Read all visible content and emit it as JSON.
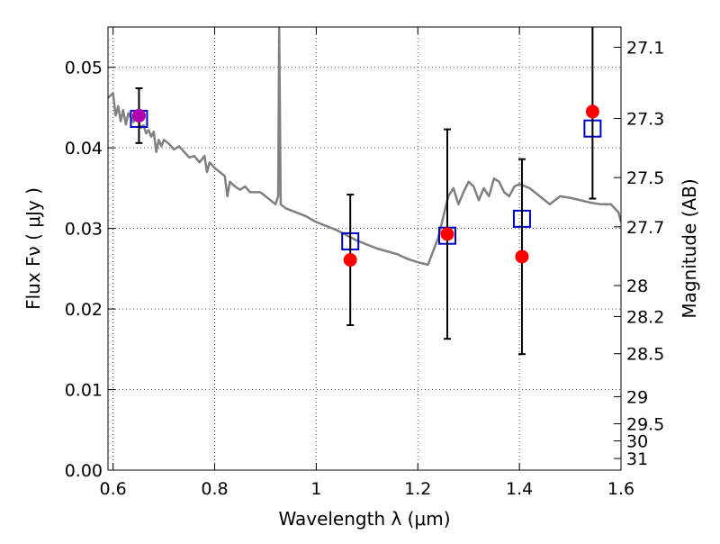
{
  "chart_data": {
    "type": "scatter",
    "xlabel": "Wavelength  λ (μm)",
    "ylabel": "Flux  Fν  ( μJy )",
    "ylabel_right": "Magnitude (AB)",
    "xlim": [
      0.59,
      1.6
    ],
    "ylim": [
      0.0,
      0.055
    ],
    "x_ticks": [
      0.6,
      0.8,
      1.0,
      1.2,
      1.4,
      1.6
    ],
    "x_tick_labels": [
      "0.6",
      "0.8",
      "1",
      "1.2",
      "1.4",
      "1.6"
    ],
    "y_ticks": [
      0.0,
      0.01,
      0.02,
      0.03,
      0.04,
      0.05
    ],
    "y_tick_labels": [
      "0.00",
      "0.01",
      "0.02",
      "0.03",
      "0.04",
      "0.05"
    ],
    "right_ticks": [
      {
        "mag": 27.1,
        "label": "27.1"
      },
      {
        "mag": 27.3,
        "label": "27.3"
      },
      {
        "mag": 27.5,
        "label": "27.5"
      },
      {
        "mag": 27.7,
        "label": "27.7"
      },
      {
        "mag": 28.0,
        "label": "28"
      },
      {
        "mag": 28.2,
        "label": "28.2"
      },
      {
        "mag": 28.5,
        "label": "28.5"
      },
      {
        "mag": 29.0,
        "label": "29"
      },
      {
        "mag": 29.5,
        "label": "29.5"
      },
      {
        "mag": 30.0,
        "label": "30"
      },
      {
        "mag": 31.0,
        "label": "31"
      }
    ],
    "grid": true,
    "colors": {
      "model": "#808080",
      "observed": "#ff0000",
      "model_points": "#0000cc",
      "error_bars": "#000000",
      "first_point": "#b000b0"
    },
    "series": [
      {
        "kind": "line",
        "x": [
          0.59,
          0.6,
          0.605,
          0.61,
          0.615,
          0.62,
          0.625,
          0.63,
          0.635,
          0.64,
          0.645,
          0.65,
          0.655,
          0.66,
          0.665,
          0.67,
          0.675,
          0.68,
          0.685,
          0.69,
          0.695,
          0.7,
          0.71,
          0.72,
          0.73,
          0.74,
          0.75,
          0.76,
          0.77,
          0.78,
          0.785,
          0.79,
          0.8,
          0.81,
          0.82,
          0.825,
          0.83,
          0.84,
          0.85,
          0.86,
          0.87,
          0.88,
          0.89,
          0.9,
          0.91,
          0.92,
          0.925,
          0.927,
          0.93,
          0.94,
          0.96,
          0.98,
          1.0,
          1.04,
          1.08,
          1.12,
          1.16,
          1.18,
          1.2,
          1.22,
          1.24,
          1.26,
          1.27,
          1.28,
          1.29,
          1.3,
          1.31,
          1.32,
          1.33,
          1.34,
          1.35,
          1.36,
          1.37,
          1.38,
          1.39,
          1.4,
          1.42,
          1.44,
          1.46,
          1.48,
          1.5,
          1.52,
          1.54,
          1.56,
          1.58,
          1.595,
          1.6
        ],
        "y": [
          0.0462,
          0.0468,
          0.044,
          0.0452,
          0.0433,
          0.0447,
          0.0429,
          0.0443,
          0.0438,
          0.0432,
          0.0436,
          0.0433,
          0.0425,
          0.0428,
          0.0418,
          0.0422,
          0.0414,
          0.042,
          0.0395,
          0.041,
          0.0402,
          0.041,
          0.0405,
          0.0398,
          0.0402,
          0.0395,
          0.0388,
          0.039,
          0.0382,
          0.039,
          0.037,
          0.0382,
          0.0375,
          0.037,
          0.0365,
          0.034,
          0.0358,
          0.0352,
          0.0348,
          0.0352,
          0.0345,
          0.0345,
          0.0345,
          0.034,
          0.0335,
          0.033,
          0.034,
          0.055,
          0.033,
          0.0325,
          0.032,
          0.0315,
          0.0308,
          0.0298,
          0.0285,
          0.0275,
          0.0268,
          0.0262,
          0.0258,
          0.0255,
          0.0288,
          0.034,
          0.035,
          0.033,
          0.0345,
          0.0358,
          0.0352,
          0.0335,
          0.035,
          0.034,
          0.0362,
          0.0358,
          0.0345,
          0.034,
          0.0352,
          0.0355,
          0.035,
          0.034,
          0.033,
          0.034,
          0.0338,
          0.0335,
          0.0332,
          0.033,
          0.033,
          0.032,
          0.0308
        ]
      },
      {
        "kind": "points",
        "x": [
          0.651,
          1.067,
          1.258,
          1.405,
          1.544
        ],
        "y": [
          0.044,
          0.0261,
          0.0293,
          0.0265,
          0.0445
        ],
        "yerr": [
          0.0034,
          0.0081,
          0.013,
          0.0121,
          0.0108
        ]
      },
      {
        "kind": "model_points",
        "x": [
          0.651,
          1.067,
          1.258,
          1.405,
          1.544
        ],
        "y": [
          0.0436,
          0.0284,
          0.0291,
          0.0312,
          0.0424
        ]
      }
    ]
  }
}
